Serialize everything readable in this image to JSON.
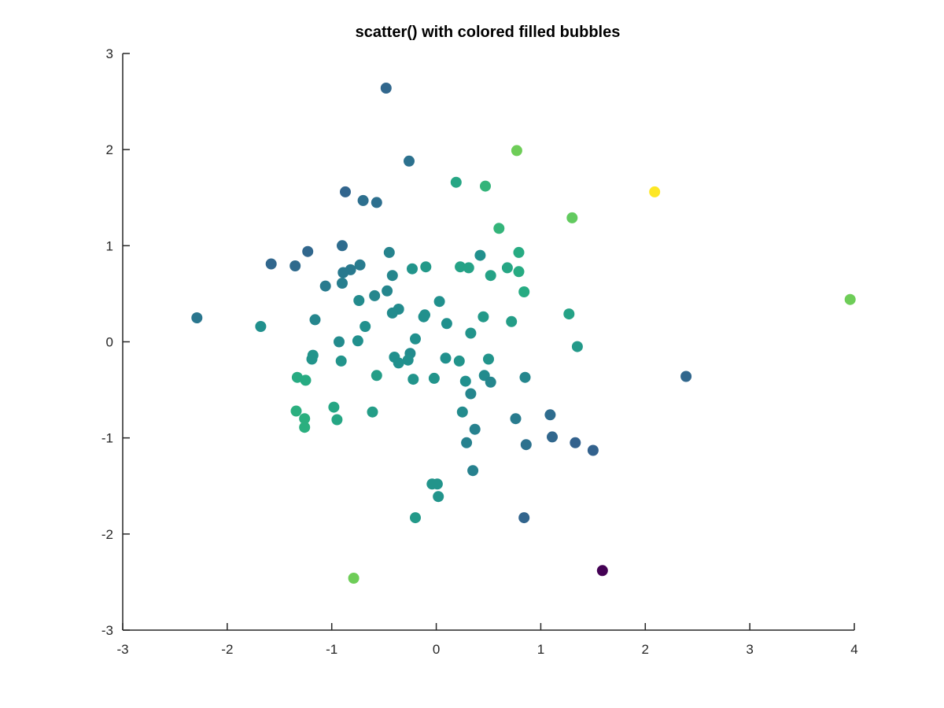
{
  "chart_data": {
    "type": "scatter",
    "title": "scatter() with colored filled bubbles",
    "xlabel": "",
    "ylabel": "",
    "xlim": [
      -3,
      4
    ],
    "ylim": [
      -3,
      3
    ],
    "xticks": [
      "-3",
      "-2",
      "-1",
      "0",
      "1",
      "2",
      "3",
      "4"
    ],
    "yticks": [
      "3",
      "2",
      "1",
      "0",
      "-1",
      "-2",
      "-3"
    ],
    "grid": false,
    "colormap": "viridis",
    "colorscale_range": [
      0,
      1
    ],
    "points": [
      {
        "x": -0.48,
        "y": 2.64,
        "c": 0.34
      },
      {
        "x": -0.26,
        "y": 1.88,
        "c": 0.38
      },
      {
        "x": 0.77,
        "y": 1.99,
        "c": 0.78
      },
      {
        "x": 0.19,
        "y": 1.66,
        "c": 0.6
      },
      {
        "x": 0.47,
        "y": 1.62,
        "c": 0.66
      },
      {
        "x": 2.09,
        "y": 1.56,
        "c": 1.0
      },
      {
        "x": -0.87,
        "y": 1.56,
        "c": 0.33
      },
      {
        "x": -0.7,
        "y": 1.47,
        "c": 0.37
      },
      {
        "x": -0.57,
        "y": 1.45,
        "c": 0.37
      },
      {
        "x": 1.3,
        "y": 1.29,
        "c": 0.76
      },
      {
        "x": 0.6,
        "y": 1.18,
        "c": 0.66
      },
      {
        "x": -0.9,
        "y": 1.0,
        "c": 0.36
      },
      {
        "x": -1.23,
        "y": 0.94,
        "c": 0.34
      },
      {
        "x": -0.45,
        "y": 0.93,
        "c": 0.45
      },
      {
        "x": 0.42,
        "y": 0.9,
        "c": 0.5
      },
      {
        "x": 0.79,
        "y": 0.93,
        "c": 0.62
      },
      {
        "x": -1.58,
        "y": 0.81,
        "c": 0.34
      },
      {
        "x": -1.35,
        "y": 0.79,
        "c": 0.35
      },
      {
        "x": -0.73,
        "y": 0.8,
        "c": 0.42
      },
      {
        "x": -0.82,
        "y": 0.75,
        "c": 0.41
      },
      {
        "x": -0.89,
        "y": 0.72,
        "c": 0.41
      },
      {
        "x": -0.23,
        "y": 0.76,
        "c": 0.52
      },
      {
        "x": -0.1,
        "y": 0.78,
        "c": 0.54
      },
      {
        "x": 0.23,
        "y": 0.78,
        "c": 0.58
      },
      {
        "x": 0.31,
        "y": 0.77,
        "c": 0.58
      },
      {
        "x": 0.68,
        "y": 0.77,
        "c": 0.6
      },
      {
        "x": 0.79,
        "y": 0.73,
        "c": 0.62
      },
      {
        "x": -0.42,
        "y": 0.69,
        "c": 0.46
      },
      {
        "x": 0.52,
        "y": 0.69,
        "c": 0.58
      },
      {
        "x": -1.06,
        "y": 0.58,
        "c": 0.42
      },
      {
        "x": -0.9,
        "y": 0.61,
        "c": 0.43
      },
      {
        "x": -0.59,
        "y": 0.48,
        "c": 0.46
      },
      {
        "x": -0.47,
        "y": 0.53,
        "c": 0.46
      },
      {
        "x": 0.84,
        "y": 0.52,
        "c": 0.62
      },
      {
        "x": -0.74,
        "y": 0.43,
        "c": 0.48
      },
      {
        "x": 0.03,
        "y": 0.42,
        "c": 0.5
      },
      {
        "x": -0.36,
        "y": 0.34,
        "c": 0.48
      },
      {
        "x": -0.42,
        "y": 0.3,
        "c": 0.48
      },
      {
        "x": -0.12,
        "y": 0.26,
        "c": 0.5
      },
      {
        "x": -0.11,
        "y": 0.28,
        "c": 0.5
      },
      {
        "x": 0.45,
        "y": 0.26,
        "c": 0.54
      },
      {
        "x": 1.27,
        "y": 0.29,
        "c": 0.58
      },
      {
        "x": 0.72,
        "y": 0.21,
        "c": 0.56
      },
      {
        "x": 0.1,
        "y": 0.19,
        "c": 0.5
      },
      {
        "x": -2.29,
        "y": 0.25,
        "c": 0.4
      },
      {
        "x": -1.68,
        "y": 0.16,
        "c": 0.5
      },
      {
        "x": -1.16,
        "y": 0.23,
        "c": 0.46
      },
      {
        "x": -0.68,
        "y": 0.16,
        "c": 0.5
      },
      {
        "x": 3.96,
        "y": 0.44,
        "c": 0.78
      },
      {
        "x": 0.33,
        "y": 0.09,
        "c": 0.52
      },
      {
        "x": -0.2,
        "y": 0.03,
        "c": 0.5
      },
      {
        "x": -0.93,
        "y": 0.0,
        "c": 0.48
      },
      {
        "x": -0.75,
        "y": 0.01,
        "c": 0.5
      },
      {
        "x": 1.35,
        "y": -0.05,
        "c": 0.54
      },
      {
        "x": -0.25,
        "y": -0.12,
        "c": 0.48
      },
      {
        "x": -1.18,
        "y": -0.14,
        "c": 0.52
      },
      {
        "x": -1.19,
        "y": -0.18,
        "c": 0.52
      },
      {
        "x": -0.4,
        "y": -0.16,
        "c": 0.5
      },
      {
        "x": -0.36,
        "y": -0.22,
        "c": 0.5
      },
      {
        "x": -0.27,
        "y": -0.19,
        "c": 0.5
      },
      {
        "x": 0.09,
        "y": -0.17,
        "c": 0.5
      },
      {
        "x": 0.22,
        "y": -0.2,
        "c": 0.52
      },
      {
        "x": 0.5,
        "y": -0.18,
        "c": 0.52
      },
      {
        "x": -0.91,
        "y": -0.2,
        "c": 0.52
      },
      {
        "x": -1.33,
        "y": -0.37,
        "c": 0.62
      },
      {
        "x": -1.25,
        "y": -0.4,
        "c": 0.62
      },
      {
        "x": -0.57,
        "y": -0.35,
        "c": 0.56
      },
      {
        "x": -0.22,
        "y": -0.39,
        "c": 0.52
      },
      {
        "x": -0.02,
        "y": -0.38,
        "c": 0.52
      },
      {
        "x": 0.28,
        "y": -0.41,
        "c": 0.5
      },
      {
        "x": 0.46,
        "y": -0.35,
        "c": 0.48
      },
      {
        "x": 0.52,
        "y": -0.42,
        "c": 0.46
      },
      {
        "x": 0.85,
        "y": -0.37,
        "c": 0.46
      },
      {
        "x": 0.33,
        "y": -0.54,
        "c": 0.46
      },
      {
        "x": 2.39,
        "y": -0.36,
        "c": 0.34
      },
      {
        "x": -1.34,
        "y": -0.72,
        "c": 0.64
      },
      {
        "x": -0.98,
        "y": -0.68,
        "c": 0.6
      },
      {
        "x": -0.61,
        "y": -0.73,
        "c": 0.56
      },
      {
        "x": -1.26,
        "y": -0.8,
        "c": 0.64
      },
      {
        "x": -0.95,
        "y": -0.81,
        "c": 0.6
      },
      {
        "x": -1.26,
        "y": -0.89,
        "c": 0.64
      },
      {
        "x": 0.25,
        "y": -0.73,
        "c": 0.48
      },
      {
        "x": 0.76,
        "y": -0.8,
        "c": 0.42
      },
      {
        "x": 1.09,
        "y": -0.76,
        "c": 0.36
      },
      {
        "x": 0.37,
        "y": -0.91,
        "c": 0.44
      },
      {
        "x": 0.29,
        "y": -1.05,
        "c": 0.44
      },
      {
        "x": 0.86,
        "y": -1.07,
        "c": 0.38
      },
      {
        "x": 1.11,
        "y": -0.99,
        "c": 0.34
      },
      {
        "x": 1.33,
        "y": -1.05,
        "c": 0.32
      },
      {
        "x": 1.5,
        "y": -1.13,
        "c": 0.32
      },
      {
        "x": 0.35,
        "y": -1.34,
        "c": 0.44
      },
      {
        "x": -0.04,
        "y": -1.48,
        "c": 0.52
      },
      {
        "x": 0.01,
        "y": -1.48,
        "c": 0.52
      },
      {
        "x": 0.02,
        "y": -1.61,
        "c": 0.52
      },
      {
        "x": -0.2,
        "y": -1.83,
        "c": 0.54
      },
      {
        "x": 0.84,
        "y": -1.83,
        "c": 0.33
      },
      {
        "x": -0.79,
        "y": -2.46,
        "c": 0.78
      },
      {
        "x": 1.59,
        "y": -2.38,
        "c": 0.0
      }
    ]
  }
}
